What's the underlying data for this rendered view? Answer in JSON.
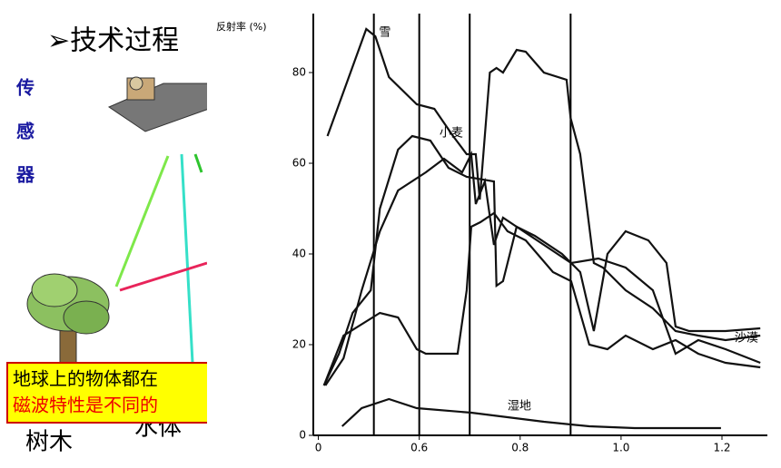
{
  "slide": {
    "title": "➢技术过程",
    "side_label": [
      "传",
      "感",
      "器"
    ],
    "box_lines": [
      "地球上的物体都在",
      "磁波特性是不同的"
    ],
    "tree_label": "树木",
    "water_label": "水体"
  },
  "chart_data": {
    "type": "line",
    "y_label": "反射率 (%)",
    "xlim": [
      0.39,
      1.29
    ],
    "ylim": [
      0,
      93
    ],
    "xticks": [
      {
        "value": 0.4,
        "label": "0"
      },
      0.6,
      0.8,
      {
        "value": 1,
        "label": "1.0"
      },
      1.2
    ],
    "yticks": [
      0,
      20,
      40,
      60,
      80
    ],
    "reference_lines": [
      0.51,
      0.6,
      0.7,
      0.9
    ],
    "series": [
      {
        "name": "雪",
        "color": "#111",
        "x": [
          0.418,
          0.495,
          0.513,
          0.54,
          0.595,
          0.63,
          0.667,
          0.694,
          0.712,
          0.72,
          0.74,
          0.753,
          0.766,
          0.793,
          0.811,
          0.847,
          0.892,
          0.9,
          0.919,
          0.946,
          0.964,
          1.009,
          1.063,
          1.108,
          1.153,
          1.207,
          1.276
        ],
        "values": [
          66,
          89.6,
          88,
          79,
          73,
          72,
          66,
          62,
          62,
          52,
          80,
          81,
          80,
          85,
          84.6,
          80,
          78.4,
          70,
          62,
          38,
          37,
          32,
          28,
          23,
          22,
          21,
          22
        ]
      },
      {
        "name": "小麦",
        "color": "#111",
        "x": [
          0.411,
          0.441,
          0.468,
          0.504,
          0.522,
          0.558,
          0.586,
          0.622,
          0.658,
          0.694,
          0.748,
          0.753,
          0.766,
          0.793,
          0.829,
          0.883,
          0.919,
          0.946,
          0.973,
          1.009,
          1.054,
          1.09,
          1.108,
          1.135,
          1.207,
          1.276
        ],
        "values": [
          11,
          18,
          27,
          32,
          50,
          63,
          66,
          65,
          59,
          57,
          56,
          33,
          34,
          46,
          44,
          40,
          36,
          23,
          40,
          45,
          43,
          38,
          24,
          23,
          23,
          23.6
        ]
      },
      {
        "name": "沙漠",
        "color": "#111",
        "x": [
          0.414,
          0.45,
          0.486,
          0.522,
          0.558,
          0.613,
          0.649,
          0.685,
          0.703,
          0.712,
          0.73,
          0.748,
          0.766,
          0.793,
          0.847,
          0.901,
          0.955,
          1.009,
          1.063,
          1.108,
          1.153,
          1.207,
          1.276
        ],
        "values": [
          11,
          17,
          32,
          45,
          54,
          58,
          61,
          58,
          62,
          51,
          56,
          42,
          48,
          46,
          42,
          38,
          39,
          37,
          32,
          18,
          21,
          19,
          16
        ]
      },
      {
        "color": "#111",
        "x": [
          0.411,
          0.45,
          0.522,
          0.558,
          0.595,
          0.613,
          0.676,
          0.694,
          0.703,
          0.721,
          0.748,
          0.775,
          0.811,
          0.865,
          0.901,
          0.937,
          0.973,
          1.009,
          1.063,
          1.108,
          1.153,
          1.207,
          1.276
        ],
        "values": [
          11,
          22,
          27,
          26,
          19,
          18,
          18,
          32,
          46,
          47,
          49,
          45,
          43,
          36,
          34,
          20,
          19,
          22,
          19,
          21,
          18,
          16,
          15
        ]
      },
      {
        "name": "湿地",
        "color": "#111",
        "x": [
          0.447,
          0.486,
          0.54,
          0.595,
          0.703,
          0.775,
          0.847,
          0.937,
          1.027,
          1.198
        ],
        "values": [
          2,
          6,
          8,
          6,
          5,
          4,
          3,
          2,
          1.6,
          1.6
        ]
      }
    ]
  }
}
